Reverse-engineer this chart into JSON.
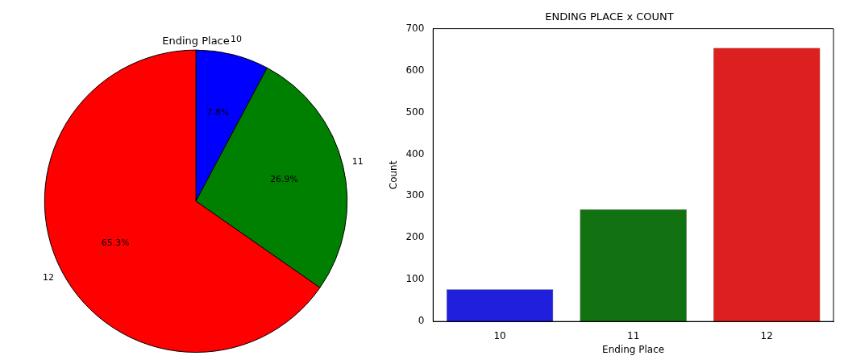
{
  "chart_data": [
    {
      "type": "pie",
      "title": "Ending Place",
      "categories": [
        "10",
        "11",
        "12"
      ],
      "values": [
        7.8,
        26.9,
        65.3
      ],
      "colors": [
        "#0000ff",
        "#008000",
        "#ff0000"
      ],
      "value_labels": [
        "7.8%",
        "26.9%",
        "65.3%"
      ]
    },
    {
      "type": "bar",
      "title": "ENDING PLACE x COUNT",
      "xlabel": "Ending Place",
      "ylabel": "Count",
      "categories": [
        "10",
        "11",
        "12"
      ],
      "values": [
        77,
        268,
        654
      ],
      "colors": [
        "#1f1fdc",
        "#127212",
        "#dc2020"
      ],
      "ylim": [
        0,
        700
      ],
      "yticks": [
        0,
        100,
        200,
        300,
        400,
        500,
        600,
        700
      ]
    }
  ]
}
